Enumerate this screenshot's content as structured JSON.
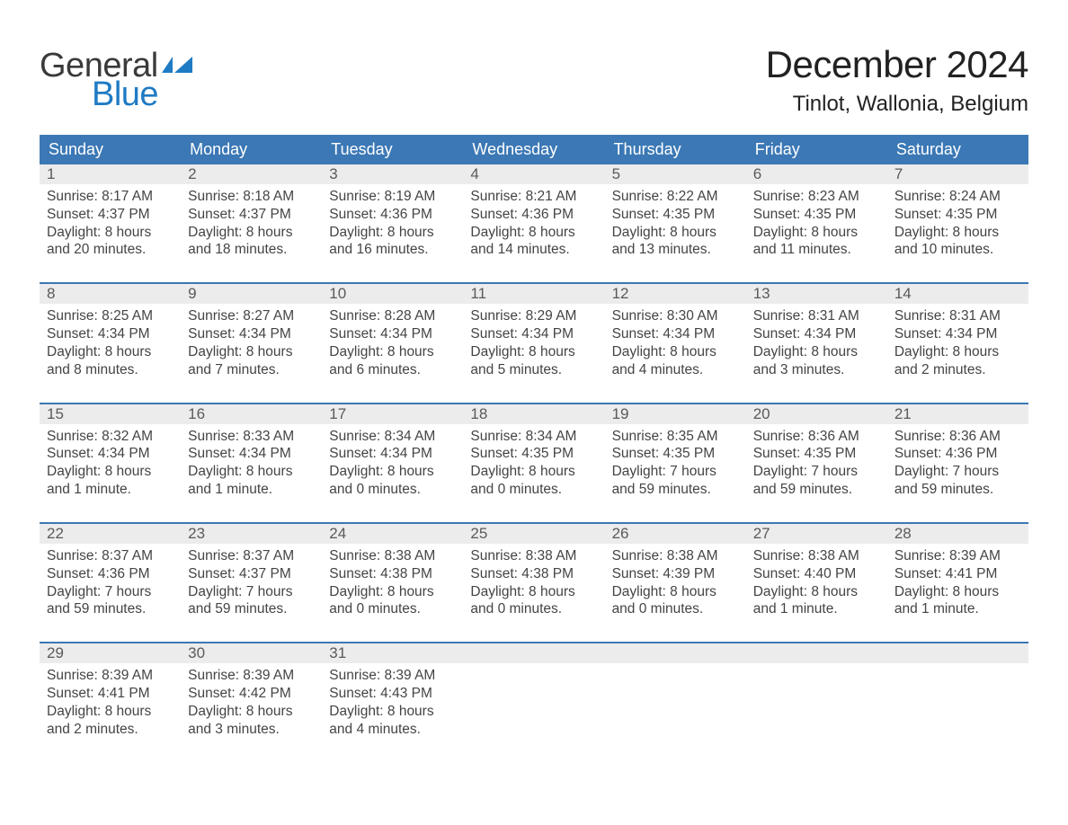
{
  "logo": {
    "general": "General",
    "blue": "Blue"
  },
  "title": "December 2024",
  "location": "Tinlot, Wallonia, Belgium",
  "colors": {
    "header_blue": "#3b78b5",
    "logo_blue": "#1f7bc4",
    "gray_bg": "#ececec",
    "border_blue": "#3b78b5",
    "text": "#333333"
  },
  "weekdays": [
    "Sunday",
    "Monday",
    "Tuesday",
    "Wednesday",
    "Thursday",
    "Friday",
    "Saturday"
  ],
  "weeks": [
    [
      {
        "n": "1",
        "sunrise": "Sunrise: 8:17 AM",
        "sunset": "Sunset: 4:37 PM",
        "d1": "Daylight: 8 hours",
        "d2": "and 20 minutes."
      },
      {
        "n": "2",
        "sunrise": "Sunrise: 8:18 AM",
        "sunset": "Sunset: 4:37 PM",
        "d1": "Daylight: 8 hours",
        "d2": "and 18 minutes."
      },
      {
        "n": "3",
        "sunrise": "Sunrise: 8:19 AM",
        "sunset": "Sunset: 4:36 PM",
        "d1": "Daylight: 8 hours",
        "d2": "and 16 minutes."
      },
      {
        "n": "4",
        "sunrise": "Sunrise: 8:21 AM",
        "sunset": "Sunset: 4:36 PM",
        "d1": "Daylight: 8 hours",
        "d2": "and 14 minutes."
      },
      {
        "n": "5",
        "sunrise": "Sunrise: 8:22 AM",
        "sunset": "Sunset: 4:35 PM",
        "d1": "Daylight: 8 hours",
        "d2": "and 13 minutes."
      },
      {
        "n": "6",
        "sunrise": "Sunrise: 8:23 AM",
        "sunset": "Sunset: 4:35 PM",
        "d1": "Daylight: 8 hours",
        "d2": "and 11 minutes."
      },
      {
        "n": "7",
        "sunrise": "Sunrise: 8:24 AM",
        "sunset": "Sunset: 4:35 PM",
        "d1": "Daylight: 8 hours",
        "d2": "and 10 minutes."
      }
    ],
    [
      {
        "n": "8",
        "sunrise": "Sunrise: 8:25 AM",
        "sunset": "Sunset: 4:34 PM",
        "d1": "Daylight: 8 hours",
        "d2": "and 8 minutes."
      },
      {
        "n": "9",
        "sunrise": "Sunrise: 8:27 AM",
        "sunset": "Sunset: 4:34 PM",
        "d1": "Daylight: 8 hours",
        "d2": "and 7 minutes."
      },
      {
        "n": "10",
        "sunrise": "Sunrise: 8:28 AM",
        "sunset": "Sunset: 4:34 PM",
        "d1": "Daylight: 8 hours",
        "d2": "and 6 minutes."
      },
      {
        "n": "11",
        "sunrise": "Sunrise: 8:29 AM",
        "sunset": "Sunset: 4:34 PM",
        "d1": "Daylight: 8 hours",
        "d2": "and 5 minutes."
      },
      {
        "n": "12",
        "sunrise": "Sunrise: 8:30 AM",
        "sunset": "Sunset: 4:34 PM",
        "d1": "Daylight: 8 hours",
        "d2": "and 4 minutes."
      },
      {
        "n": "13",
        "sunrise": "Sunrise: 8:31 AM",
        "sunset": "Sunset: 4:34 PM",
        "d1": "Daylight: 8 hours",
        "d2": "and 3 minutes."
      },
      {
        "n": "14",
        "sunrise": "Sunrise: 8:31 AM",
        "sunset": "Sunset: 4:34 PM",
        "d1": "Daylight: 8 hours",
        "d2": "and 2 minutes."
      }
    ],
    [
      {
        "n": "15",
        "sunrise": "Sunrise: 8:32 AM",
        "sunset": "Sunset: 4:34 PM",
        "d1": "Daylight: 8 hours",
        "d2": "and 1 minute."
      },
      {
        "n": "16",
        "sunrise": "Sunrise: 8:33 AM",
        "sunset": "Sunset: 4:34 PM",
        "d1": "Daylight: 8 hours",
        "d2": "and 1 minute."
      },
      {
        "n": "17",
        "sunrise": "Sunrise: 8:34 AM",
        "sunset": "Sunset: 4:34 PM",
        "d1": "Daylight: 8 hours",
        "d2": "and 0 minutes."
      },
      {
        "n": "18",
        "sunrise": "Sunrise: 8:34 AM",
        "sunset": "Sunset: 4:35 PM",
        "d1": "Daylight: 8 hours",
        "d2": "and 0 minutes."
      },
      {
        "n": "19",
        "sunrise": "Sunrise: 8:35 AM",
        "sunset": "Sunset: 4:35 PM",
        "d1": "Daylight: 7 hours",
        "d2": "and 59 minutes."
      },
      {
        "n": "20",
        "sunrise": "Sunrise: 8:36 AM",
        "sunset": "Sunset: 4:35 PM",
        "d1": "Daylight: 7 hours",
        "d2": "and 59 minutes."
      },
      {
        "n": "21",
        "sunrise": "Sunrise: 8:36 AM",
        "sunset": "Sunset: 4:36 PM",
        "d1": "Daylight: 7 hours",
        "d2": "and 59 minutes."
      }
    ],
    [
      {
        "n": "22",
        "sunrise": "Sunrise: 8:37 AM",
        "sunset": "Sunset: 4:36 PM",
        "d1": "Daylight: 7 hours",
        "d2": "and 59 minutes."
      },
      {
        "n": "23",
        "sunrise": "Sunrise: 8:37 AM",
        "sunset": "Sunset: 4:37 PM",
        "d1": "Daylight: 7 hours",
        "d2": "and 59 minutes."
      },
      {
        "n": "24",
        "sunrise": "Sunrise: 8:38 AM",
        "sunset": "Sunset: 4:38 PM",
        "d1": "Daylight: 8 hours",
        "d2": "and 0 minutes."
      },
      {
        "n": "25",
        "sunrise": "Sunrise: 8:38 AM",
        "sunset": "Sunset: 4:38 PM",
        "d1": "Daylight: 8 hours",
        "d2": "and 0 minutes."
      },
      {
        "n": "26",
        "sunrise": "Sunrise: 8:38 AM",
        "sunset": "Sunset: 4:39 PM",
        "d1": "Daylight: 8 hours",
        "d2": "and 0 minutes."
      },
      {
        "n": "27",
        "sunrise": "Sunrise: 8:38 AM",
        "sunset": "Sunset: 4:40 PM",
        "d1": "Daylight: 8 hours",
        "d2": "and 1 minute."
      },
      {
        "n": "28",
        "sunrise": "Sunrise: 8:39 AM",
        "sunset": "Sunset: 4:41 PM",
        "d1": "Daylight: 8 hours",
        "d2": "and 1 minute."
      }
    ],
    [
      {
        "n": "29",
        "sunrise": "Sunrise: 8:39 AM",
        "sunset": "Sunset: 4:41 PM",
        "d1": "Daylight: 8 hours",
        "d2": "and 2 minutes."
      },
      {
        "n": "30",
        "sunrise": "Sunrise: 8:39 AM",
        "sunset": "Sunset: 4:42 PM",
        "d1": "Daylight: 8 hours",
        "d2": "and 3 minutes."
      },
      {
        "n": "31",
        "sunrise": "Sunrise: 8:39 AM",
        "sunset": "Sunset: 4:43 PM",
        "d1": "Daylight: 8 hours",
        "d2": "and 4 minutes."
      },
      {
        "empty": true
      },
      {
        "empty": true
      },
      {
        "empty": true
      },
      {
        "empty": true
      }
    ]
  ]
}
